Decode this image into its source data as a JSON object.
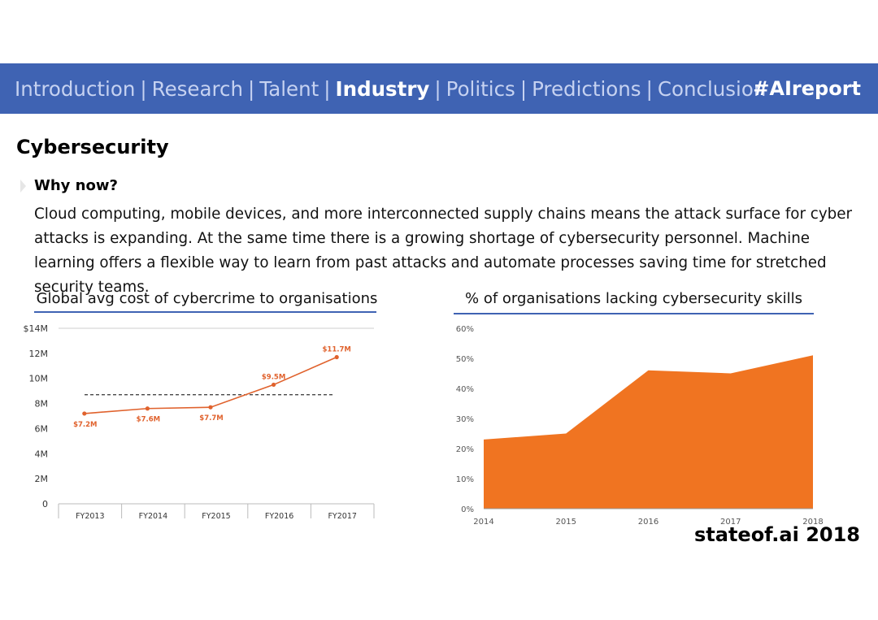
{
  "nav": {
    "items": [
      {
        "label": "Introduction",
        "active": false
      },
      {
        "label": "Research",
        "active": false
      },
      {
        "label": "Talent",
        "active": false
      },
      {
        "label": "Industry",
        "active": true
      },
      {
        "label": "Politics",
        "active": false
      },
      {
        "label": "Predictions",
        "active": false
      },
      {
        "label": "Conclusion",
        "active": false
      }
    ],
    "separator": "|",
    "hashtag": "#AIreport"
  },
  "page": {
    "title": "Cybersecurity",
    "subtitle": "Why now?",
    "body": "Cloud computing, mobile devices, and more interconnected supply chains means the attack surface for cyber attacks is expanding. At the same time there is a growing shortage of cybersecurity personnel. Machine learning offers a flexible way to learn from past attacks and automate processes saving time for stretched security teams.",
    "footer": "stateof.ai 2018"
  },
  "colors": {
    "nav_bg": "#3f63b3",
    "line": "#e0622d",
    "area": "#f07421"
  },
  "chart_data": [
    {
      "type": "line",
      "title": "Global avg cost of cybercrime to organisations",
      "categories": [
        "FY2013",
        "FY2014",
        "FY2015",
        "FY2016",
        "FY2017"
      ],
      "values": [
        7.2,
        7.6,
        7.7,
        9.5,
        11.7
      ],
      "data_labels": [
        "$7.2M",
        "$7.6M",
        "$7.7M",
        "$9.5M",
        "$11.7M"
      ],
      "y_ticks": [
        "0",
        "2M",
        "4M",
        "6M",
        "8M",
        "10M",
        "12M",
        "$14M"
      ],
      "ylim": [
        0,
        14
      ],
      "reference_line": 8.7,
      "grid": false
    },
    {
      "type": "area",
      "title": "% of organisations lacking cybersecurity skills",
      "x": [
        "2014",
        "2015",
        "2016",
        "2017",
        "2018"
      ],
      "values": [
        23,
        25,
        46,
        45,
        51
      ],
      "y_ticks": [
        "0%",
        "10%",
        "20%",
        "30%",
        "40%",
        "50%",
        "60%"
      ],
      "ylim": [
        0,
        60
      ],
      "grid": false
    }
  ]
}
